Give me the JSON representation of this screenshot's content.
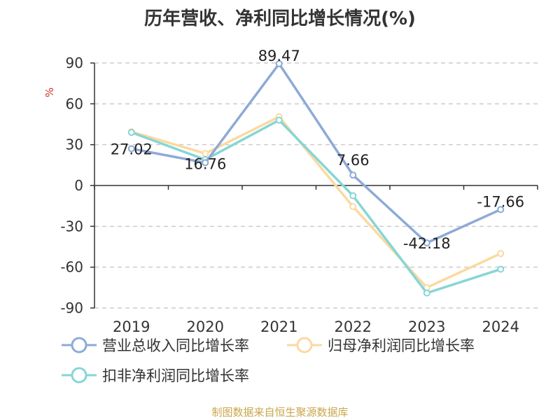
{
  "chart_data": {
    "type": "line",
    "title": "历年营收、净利同比增长情况(%)",
    "ylabel": "%",
    "categories": [
      "2019",
      "2020",
      "2021",
      "2022",
      "2023",
      "2024"
    ],
    "ylim": [
      -90,
      90
    ],
    "yticks": [
      90,
      60,
      30,
      0,
      -30,
      -60,
      -90
    ],
    "grid": true,
    "legend_position": "bottom",
    "series": [
      {
        "name": "营业总收入同比增长率",
        "color": "#8eaad6",
        "values": [
          27.02,
          16.76,
          89.47,
          7.66,
          -42.18,
          -17.66
        ],
        "labels": [
          "27.02",
          "16.76",
          "89.47",
          "7.66",
          "-42.18",
          "-17.66"
        ]
      },
      {
        "name": "归母净利润同比增长率",
        "color": "#fbd9a0",
        "values": [
          39.5,
          23.5,
          50.5,
          -15.5,
          -75,
          -50
        ]
      },
      {
        "name": "扣非净利润同比增长率",
        "color": "#86d6d6",
        "values": [
          39,
          19,
          48,
          -7.5,
          -79,
          -61.5
        ]
      }
    ]
  },
  "footer": {
    "source": "制图数据来自恒生聚源数据库"
  }
}
